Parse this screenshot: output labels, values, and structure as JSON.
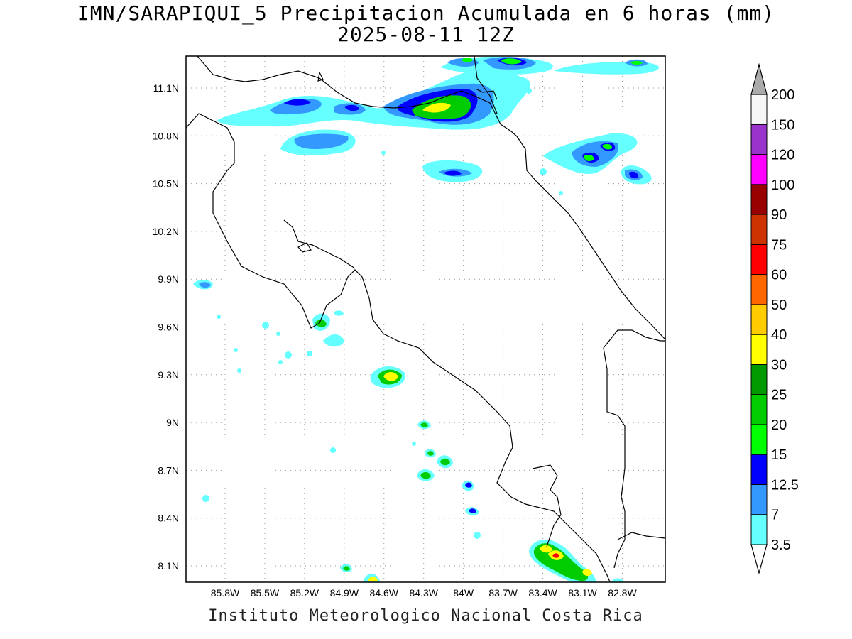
{
  "title": {
    "line1": "IMN/SARAPIQUI_5 Precipitacion Acumulada en 6 horas (mm)",
    "line2": "2025-08-11 12Z"
  },
  "footer": "Instituto Meteorologico Nacional Costa Rica",
  "map": {
    "lon_range": [
      -86.0,
      -83.0
    ],
    "lat_range": [
      8.0,
      11.3
    ],
    "lon_ticks": [
      "85.8W",
      "85.5W",
      "85.2W",
      "84.9W",
      "84.6W",
      "84.3W",
      "84W",
      "83.7W",
      "83.4W",
      "83.1W",
      "82.8W"
    ],
    "lat_ticks": [
      "11.1N",
      "10.8N",
      "10.5N",
      "10.2N",
      "9.9N",
      "9.6N",
      "9.3N",
      "9N",
      "8.7N",
      "8.4N",
      "8.1N"
    ],
    "grid": "dotted"
  },
  "colorbar": {
    "levels": [
      "3.5",
      "7",
      "12.5",
      "15",
      "20",
      "25",
      "30",
      "40",
      "50",
      "60",
      "75",
      "90",
      "100",
      "120",
      "150",
      "200"
    ],
    "colors": [
      "#66ffff",
      "#3399ff",
      "#0000ff",
      "#00ff00",
      "#00cc00",
      "#009900",
      "#ffff00",
      "#ffcc00",
      "#ff6600",
      "#ff0000",
      "#cc3300",
      "#990000",
      "#ff00ff",
      "#9933cc",
      "#f5f5f5",
      "#aaaaaa"
    ]
  }
}
